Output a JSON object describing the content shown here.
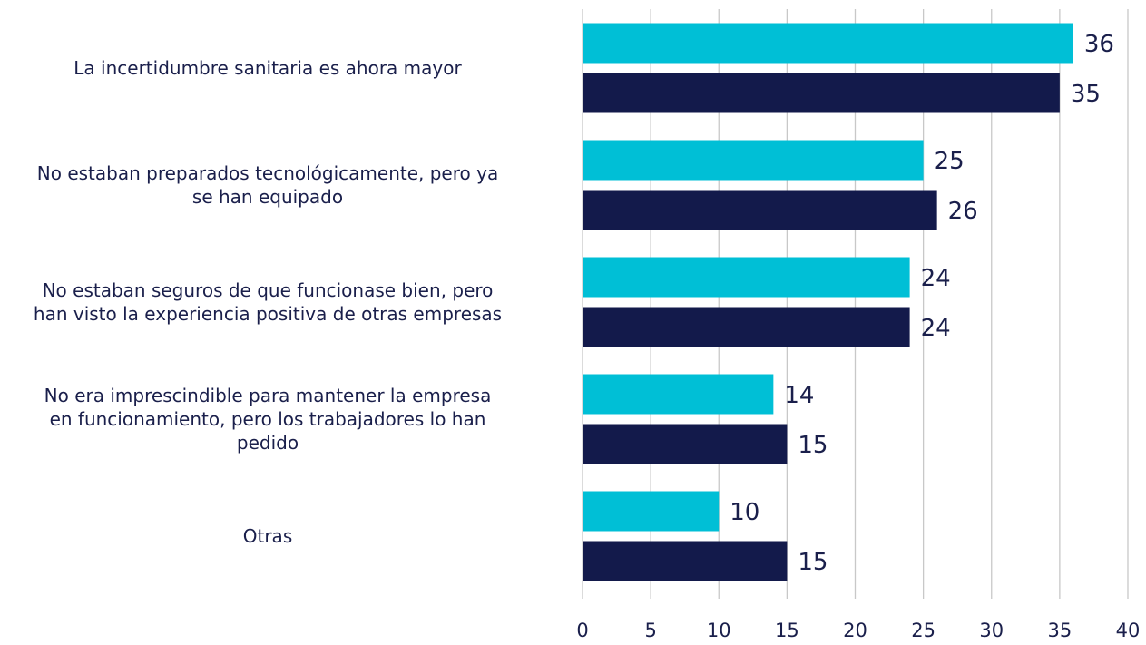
{
  "chart_data": {
    "type": "barh",
    "categories": [
      "La incertidumbre sanitaria es ahora mayor",
      "No estaban preparados tecnológicamente, pero ya\nse han equipado",
      "No estaban seguros de que funcionase bien, pero\nhan visto la experiencia positiva de otras empresas",
      "No era imprescindible para mantener la empresa\nen funcionamiento, pero los trabajadores lo han\npedido",
      "Otras"
    ],
    "series": [
      {
        "color": "#00bfd6",
        "values": [
          36,
          25,
          24,
          14,
          10
        ]
      },
      {
        "color": "#131a4b",
        "values": [
          35,
          26,
          24,
          15,
          15
        ]
      }
    ],
    "xlim": [
      0,
      40
    ],
    "xticks": [
      0,
      5,
      10,
      15,
      20,
      25,
      30,
      35,
      40
    ],
    "grid": true
  }
}
